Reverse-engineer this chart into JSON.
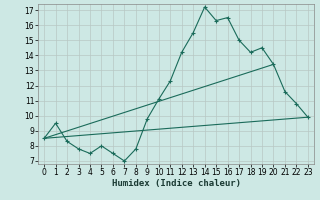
{
  "title": "",
  "xlabel": "Humidex (Indice chaleur)",
  "ylabel": "",
  "bg_color": "#cde8e4",
  "plot_bg_color": "#cde8e4",
  "grid_color": "#b8c8c4",
  "line_color": "#1a6b5a",
  "xlim": [
    -0.5,
    23.5
  ],
  "ylim": [
    6.8,
    17.4
  ],
  "yticks": [
    7,
    8,
    9,
    10,
    11,
    12,
    13,
    14,
    15,
    16,
    17
  ],
  "xticks": [
    0,
    1,
    2,
    3,
    4,
    5,
    6,
    7,
    8,
    9,
    10,
    11,
    12,
    13,
    14,
    15,
    16,
    17,
    18,
    19,
    20,
    21,
    22,
    23
  ],
  "line1_x": [
    0,
    1,
    2,
    3,
    4,
    5,
    6,
    7,
    8,
    9,
    10,
    11,
    12,
    13,
    14,
    15,
    16,
    17,
    18,
    19,
    20,
    21,
    22,
    23
  ],
  "line1_y": [
    8.5,
    9.5,
    8.3,
    7.8,
    7.5,
    8.0,
    7.5,
    7.0,
    7.8,
    9.8,
    11.1,
    12.3,
    14.2,
    15.5,
    17.2,
    16.3,
    16.5,
    15.0,
    14.2,
    14.5,
    13.4,
    11.6,
    10.8,
    9.9
  ],
  "line2_x": [
    0,
    20
  ],
  "line2_y": [
    8.5,
    13.4
  ],
  "line3_x": [
    0,
    23
  ],
  "line3_y": [
    8.5,
    9.9
  ],
  "marker": "+",
  "tick_fontsize": 5.5,
  "xlabel_fontsize": 6.5
}
